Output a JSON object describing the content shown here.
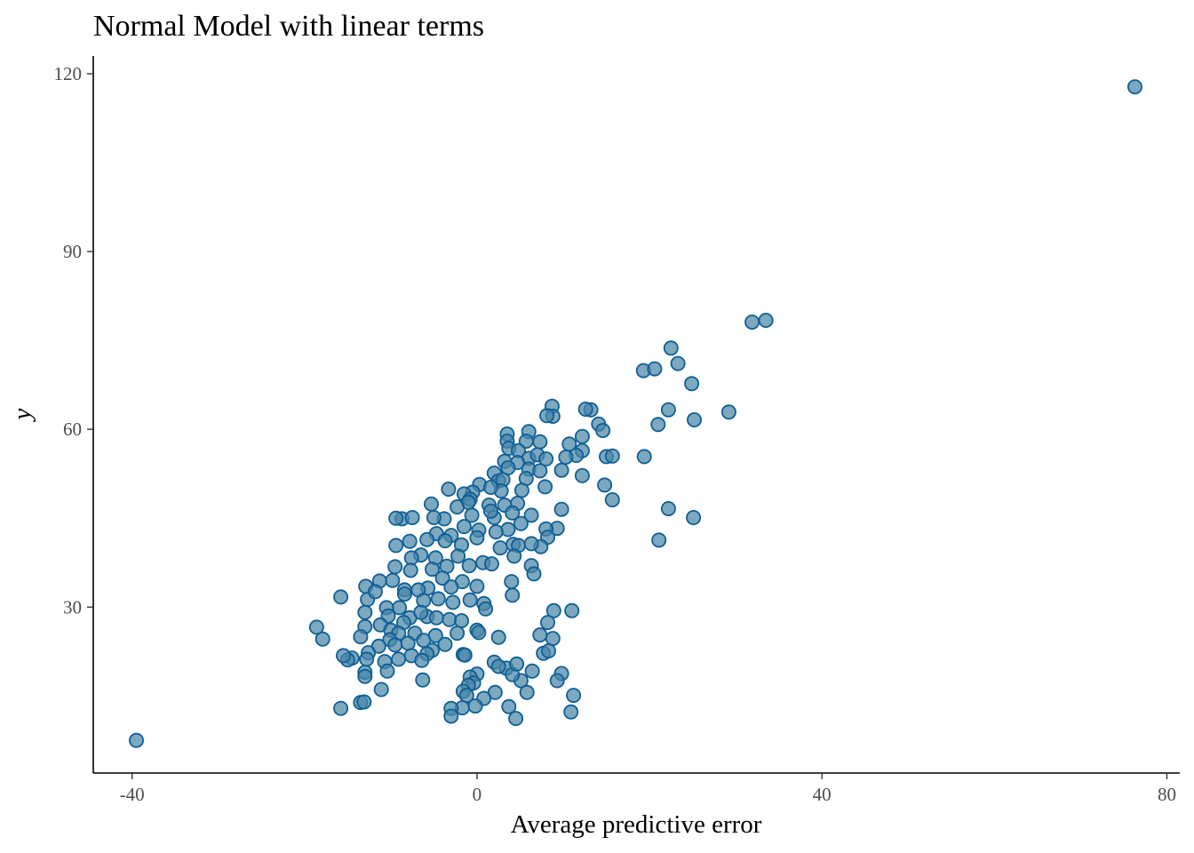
{
  "chart_data": {
    "type": "scatter",
    "title": "Normal Model with linear terms",
    "xlabel": "Average predictive error",
    "ylabel": "y",
    "xlim": [
      -44.5,
      81.5
    ],
    "ylim": [
      2,
      123
    ],
    "x_ticks": [
      -40,
      0,
      40,
      80
    ],
    "y_ticks": [
      30,
      60,
      90,
      120
    ],
    "grid": false,
    "legend": "none",
    "point_fill": "#4a86a8",
    "point_stroke": "#0f5f95",
    "points": [
      [
        -39.5,
        7.5
      ],
      [
        76.3,
        117.8
      ],
      [
        31.9,
        78.1
      ],
      [
        33.5,
        78.4
      ],
      [
        22.5,
        73.7
      ],
      [
        19.3,
        69.9
      ],
      [
        20.6,
        70.2
      ],
      [
        23.3,
        71.1
      ],
      [
        24.9,
        67.7
      ],
      [
        22.2,
        63.3
      ],
      [
        21.0,
        60.8
      ],
      [
        25.2,
        61.6
      ],
      [
        29.2,
        62.9
      ],
      [
        19.4,
        55.4
      ],
      [
        22.2,
        46.6
      ],
      [
        25.1,
        45.1
      ],
      [
        21.1,
        41.3
      ],
      [
        13.2,
        63.3
      ],
      [
        12.6,
        63.4
      ],
      [
        14.1,
        60.9
      ],
      [
        14.6,
        59.8
      ],
      [
        15.0,
        55.4
      ],
      [
        15.7,
        55.5
      ],
      [
        12.2,
        58.8
      ],
      [
        12.2,
        56.4
      ],
      [
        10.7,
        57.5
      ],
      [
        11.5,
        55.6
      ],
      [
        10.3,
        55.3
      ],
      [
        9.8,
        53.1
      ],
      [
        12.2,
        52.2
      ],
      [
        14.8,
        50.6
      ],
      [
        15.7,
        48.1
      ],
      [
        9.8,
        46.5
      ],
      [
        9.3,
        43.3
      ],
      [
        8.0,
        43.2
      ],
      [
        8.2,
        41.8
      ],
      [
        7.4,
        40.2
      ],
      [
        8.7,
        63.9
      ],
      [
        8.8,
        62.2
      ],
      [
        8.1,
        62.3
      ],
      [
        7.3,
        57.9
      ],
      [
        6.0,
        59.6
      ],
      [
        5.7,
        58.0
      ],
      [
        3.5,
        59.2
      ],
      [
        3.5,
        58.0
      ],
      [
        3.7,
        56.8
      ],
      [
        4.8,
        56.4
      ],
      [
        6.0,
        55.1
      ],
      [
        7.0,
        55.7
      ],
      [
        8.0,
        55.0
      ],
      [
        4.7,
        54.4
      ],
      [
        3.2,
        54.6
      ],
      [
        3.6,
        53.5
      ],
      [
        6.0,
        53.3
      ],
      [
        7.3,
        53.0
      ],
      [
        5.7,
        51.7
      ],
      [
        2.0,
        52.6
      ],
      [
        2.5,
        51.3
      ],
      [
        3.0,
        51.5
      ],
      [
        7.9,
        50.3
      ],
      [
        5.2,
        49.7
      ],
      [
        2.8,
        49.6
      ],
      [
        0.3,
        50.7
      ],
      [
        1.6,
        50.2
      ],
      [
        -0.5,
        49.4
      ],
      [
        -1.5,
        49.1
      ],
      [
        -3.3,
        49.9
      ],
      [
        4.7,
        47.5
      ],
      [
        3.2,
        47.2
      ],
      [
        1.4,
        47.2
      ],
      [
        -0.8,
        48.2
      ],
      [
        -1.0,
        47.7
      ],
      [
        -2.3,
        46.9
      ],
      [
        -5.3,
        47.4
      ],
      [
        6.3,
        45.5
      ],
      [
        4.1,
        45.9
      ],
      [
        2.0,
        45.1
      ],
      [
        1.6,
        46.2
      ],
      [
        -0.6,
        45.5
      ],
      [
        -3.8,
        44.9
      ],
      [
        -5.0,
        45.1
      ],
      [
        -8.7,
        44.9
      ],
      [
        -9.4,
        45.0
      ],
      [
        -7.5,
        45.1
      ],
      [
        3.6,
        43.1
      ],
      [
        5.1,
        44.1
      ],
      [
        2.2,
        42.7
      ],
      [
        0.2,
        43.0
      ],
      [
        -1.5,
        43.6
      ],
      [
        -3.0,
        42.1
      ],
      [
        -4.7,
        42.4
      ],
      [
        -5.8,
        41.4
      ],
      [
        -7.8,
        41.1
      ],
      [
        -9.4,
        40.4
      ],
      [
        -3.7,
        41.2
      ],
      [
        -1.8,
        40.5
      ],
      [
        0.0,
        41.7
      ],
      [
        2.7,
        40.0
      ],
      [
        4.2,
        40.6
      ],
      [
        4.8,
        40.4
      ],
      [
        6.3,
        40.7
      ],
      [
        -2.2,
        38.6
      ],
      [
        -4.8,
        38.3
      ],
      [
        -6.5,
        38.8
      ],
      [
        -7.6,
        38.3
      ],
      [
        0.7,
        37.5
      ],
      [
        1.7,
        37.3
      ],
      [
        4.3,
        38.6
      ],
      [
        6.3,
        37.0
      ],
      [
        6.6,
        35.6
      ],
      [
        -0.9,
        37.0
      ],
      [
        -3.5,
        36.9
      ],
      [
        -5.2,
        36.4
      ],
      [
        -7.7,
        36.2
      ],
      [
        -9.5,
        36.8
      ],
      [
        -9.8,
        34.5
      ],
      [
        -8.4,
        32.9
      ],
      [
        -11.3,
        34.4
      ],
      [
        -12.9,
        33.5
      ],
      [
        -4.0,
        34.9
      ],
      [
        -1.7,
        34.3
      ],
      [
        -3.0,
        33.4
      ],
      [
        -5.7,
        33.2
      ],
      [
        -6.8,
        32.9
      ],
      [
        4.0,
        34.3
      ],
      [
        4.1,
        32.0
      ],
      [
        0.0,
        33.5
      ],
      [
        -0.8,
        31.2
      ],
      [
        -2.8,
        30.8
      ],
      [
        -4.5,
        31.4
      ],
      [
        -6.2,
        31.1
      ],
      [
        -8.4,
        32.2
      ],
      [
        -9.0,
        29.9
      ],
      [
        -10.5,
        29.9
      ],
      [
        -12.7,
        31.3
      ],
      [
        -11.8,
        32.6
      ],
      [
        -15.8,
        31.7
      ],
      [
        -13.0,
        29.1
      ],
      [
        -10.3,
        28.5
      ],
      [
        -7.8,
        28.2
      ],
      [
        -5.8,
        28.4
      ],
      [
        -4.7,
        28.2
      ],
      [
        -3.2,
        27.9
      ],
      [
        -1.8,
        27.7
      ],
      [
        0.8,
        30.6
      ],
      [
        1.0,
        29.7
      ],
      [
        -6.5,
        29.1
      ],
      [
        -8.5,
        27.4
      ],
      [
        -11.2,
        27.0
      ],
      [
        -13.0,
        26.7
      ],
      [
        -10.0,
        26.1
      ],
      [
        -9.1,
        25.6
      ],
      [
        -7.2,
        25.6
      ],
      [
        -4.8,
        25.2
      ],
      [
        -2.3,
        25.6
      ],
      [
        0.0,
        26.1
      ],
      [
        0.2,
        25.7
      ],
      [
        2.5,
        24.9
      ],
      [
        -13.5,
        25.0
      ],
      [
        -10.1,
        24.5
      ],
      [
        -9.5,
        23.6
      ],
      [
        -8.0,
        23.9
      ],
      [
        -6.2,
        24.4
      ],
      [
        -3.7,
        23.7
      ],
      [
        -5.2,
        22.7
      ],
      [
        -5.8,
        22.1
      ],
      [
        -7.6,
        21.8
      ],
      [
        -9.1,
        21.2
      ],
      [
        -10.7,
        20.8
      ],
      [
        -11.4,
        23.4
      ],
      [
        -12.6,
        22.3
      ],
      [
        -14.5,
        21.4
      ],
      [
        -15.0,
        21.1
      ],
      [
        -15.5,
        21.8
      ],
      [
        -12.8,
        21.2
      ],
      [
        -13.0,
        19.0
      ],
      [
        -13.0,
        18.3
      ],
      [
        -10.4,
        19.2
      ],
      [
        -11.1,
        16.1
      ],
      [
        -6.4,
        21.0
      ],
      [
        -6.3,
        17.7
      ],
      [
        -1.6,
        22.0
      ],
      [
        -1.4,
        21.9
      ],
      [
        -18.6,
        26.6
      ],
      [
        -17.9,
        24.6
      ],
      [
        -15.8,
        12.9
      ],
      [
        -13.5,
        13.9
      ],
      [
        -13.1,
        14.0
      ],
      [
        7.3,
        25.3
      ],
      [
        8.8,
        24.7
      ],
      [
        8.2,
        27.4
      ],
      [
        8.9,
        29.4
      ],
      [
        11.0,
        29.4
      ],
      [
        7.7,
        22.2
      ],
      [
        8.3,
        22.6
      ],
      [
        6.4,
        19.2
      ],
      [
        9.8,
        18.8
      ],
      [
        9.3,
        17.6
      ],
      [
        11.2,
        15.1
      ],
      [
        10.9,
        12.3
      ],
      [
        5.1,
        17.6
      ],
      [
        5.8,
        15.6
      ],
      [
        3.4,
        19.7
      ],
      [
        4.1,
        18.6
      ],
      [
        4.6,
        20.4
      ],
      [
        2.0,
        20.7
      ],
      [
        2.5,
        20.0
      ],
      [
        2.1,
        15.6
      ],
      [
        0.0,
        18.7
      ],
      [
        -0.8,
        18.2
      ],
      [
        -0.4,
        17.2
      ],
      [
        -1.0,
        16.8
      ],
      [
        -1.6,
        15.8
      ],
      [
        -1.2,
        15.1
      ],
      [
        0.8,
        14.6
      ],
      [
        -0.2,
        13.3
      ],
      [
        -1.7,
        13.0
      ],
      [
        -3.0,
        12.9
      ],
      [
        -3.0,
        11.6
      ],
      [
        3.7,
        13.2
      ],
      [
        4.5,
        11.2
      ]
    ]
  }
}
